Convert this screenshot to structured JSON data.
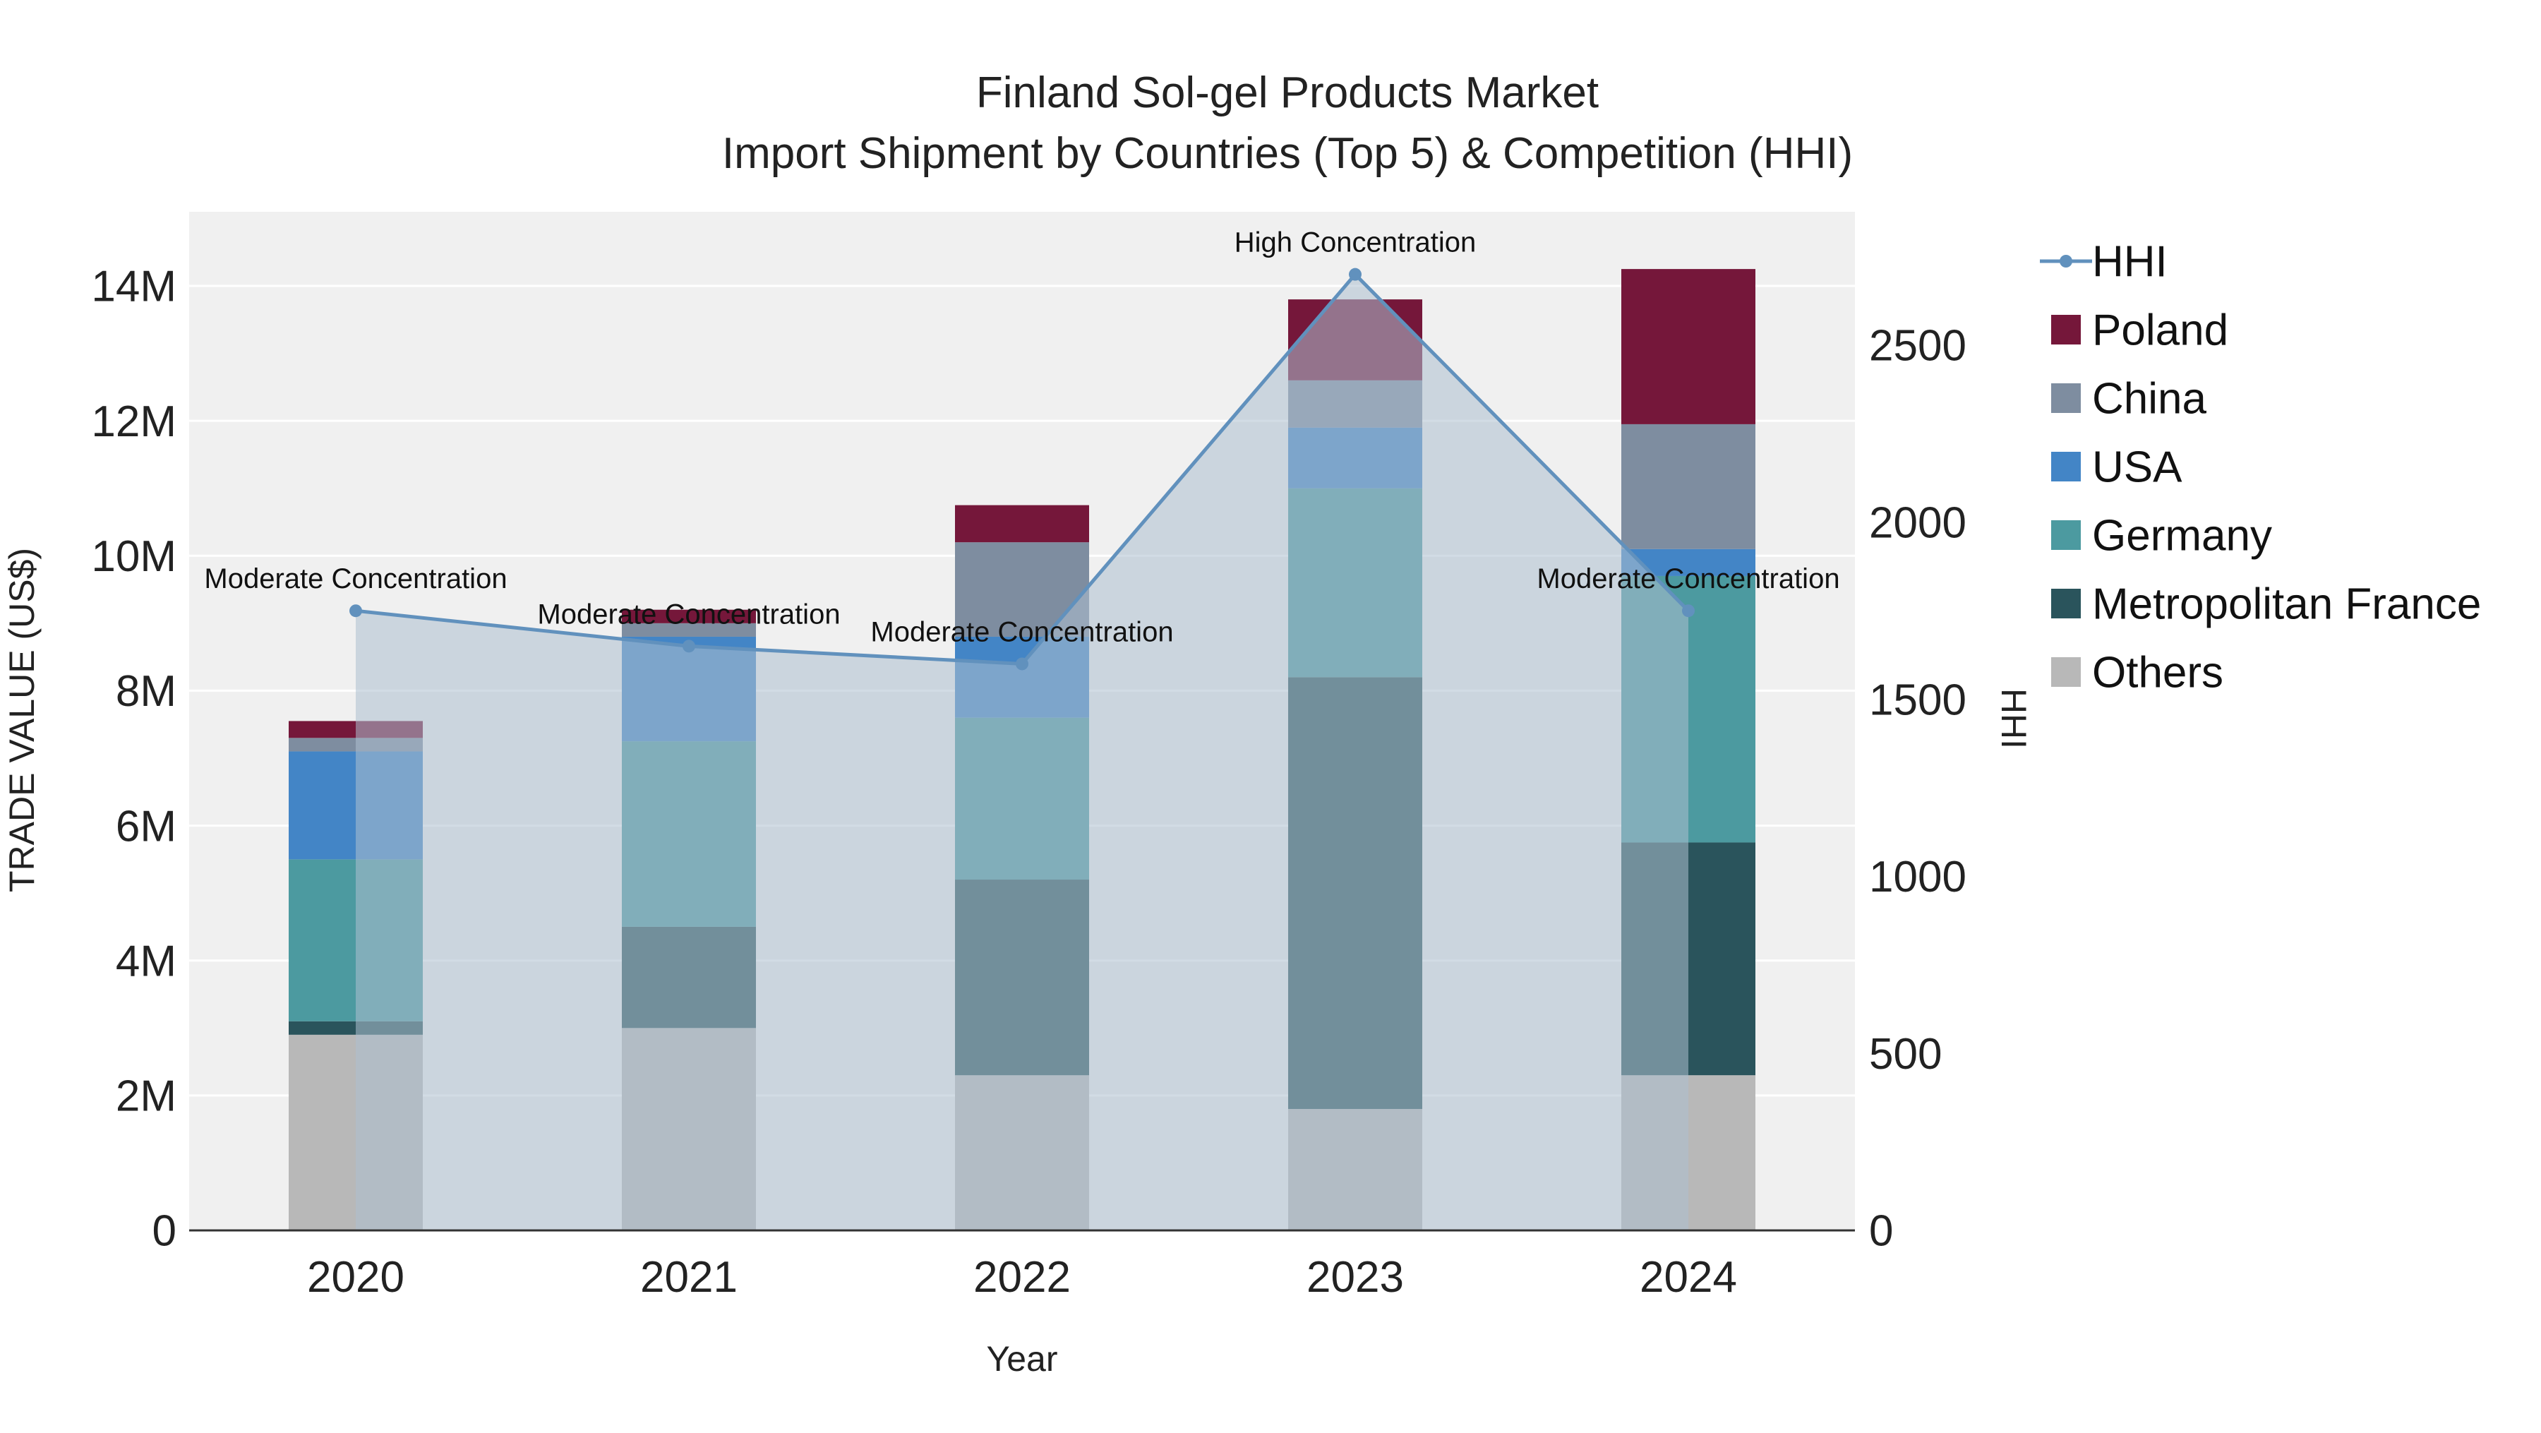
{
  "title": {
    "line1": "Finland Sol-gel Products Market",
    "line2": "Import Shipment by Countries (Top 5) & Competition (HHI)"
  },
  "chart_data": {
    "type": "bar",
    "stacked": true,
    "title": "Finland Sol-gel Products Market Import Shipment by Countries (Top 5) & Competition (HHI)",
    "xlabel": "Year",
    "ylabel_left": "TRADE VALUE (US$)",
    "ylabel_right": "HHI",
    "categories": [
      "2020",
      "2021",
      "2022",
      "2023",
      "2024"
    ],
    "ylim_left": [
      0,
      14000000
    ],
    "ylim_right": [
      0,
      2500
    ],
    "yticks_left": [
      "0",
      "2M",
      "4M",
      "6M",
      "8M",
      "10M",
      "12M",
      "14M"
    ],
    "ytick_values_left": [
      0,
      2000000,
      4000000,
      6000000,
      8000000,
      10000000,
      12000000,
      14000000
    ],
    "yticks_right": [
      0,
      500,
      1000,
      1500,
      2000,
      2500
    ],
    "grid": true,
    "legend_position": "right",
    "series": [
      {
        "name": "Others",
        "color": "#b8b8b8",
        "values": [
          2900000,
          3000000,
          2300000,
          1800000,
          2300000
        ]
      },
      {
        "name": "Metropolitan France",
        "color": "#2a545c",
        "values": [
          200000,
          1500000,
          2900000,
          6400000,
          3450000
        ]
      },
      {
        "name": "Germany",
        "color": "#4c9aa0",
        "values": [
          2400000,
          2750000,
          2400000,
          2800000,
          3950000
        ]
      },
      {
        "name": "USA",
        "color": "#4385c6",
        "values": [
          1600000,
          1550000,
          1200000,
          900000,
          400000
        ]
      },
      {
        "name": "China",
        "color": "#7e8da0",
        "values": [
          200000,
          200000,
          1400000,
          700000,
          1850000
        ]
      },
      {
        "name": "Poland",
        "color": "#75173a",
        "values": [
          250000,
          200000,
          550000,
          1200000,
          2300000
        ]
      }
    ],
    "line_series": {
      "name": "HHI",
      "color": "#6191bd",
      "area_color": "#adbfcf",
      "values": [
        1750,
        1650,
        1600,
        2700,
        1750
      ]
    },
    "annotations": [
      {
        "x": "2020",
        "text": "Moderate Concentration"
      },
      {
        "x": "2021",
        "text": "Moderate Concentration"
      },
      {
        "x": "2022",
        "text": "Moderate Concentration"
      },
      {
        "x": "2023",
        "text": "High Concentration"
      },
      {
        "x": "2024",
        "text": "Moderate Concentration"
      }
    ],
    "legend": [
      {
        "label": "HHI",
        "type": "line",
        "color": "#6191bd"
      },
      {
        "label": "Poland",
        "type": "square",
        "color": "#75173a"
      },
      {
        "label": "China",
        "type": "square",
        "color": "#7e8da0"
      },
      {
        "label": "USA",
        "type": "square",
        "color": "#4385c6"
      },
      {
        "label": "Germany",
        "type": "square",
        "color": "#4c9aa0"
      },
      {
        "label": "Metropolitan France",
        "type": "square",
        "color": "#2a545c"
      },
      {
        "label": "Others",
        "type": "square",
        "color": "#b8b8b8"
      }
    ]
  }
}
